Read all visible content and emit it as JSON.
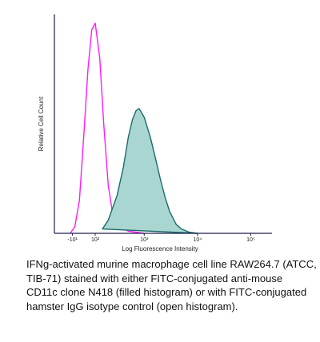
{
  "chart_data": {
    "type": "line",
    "xlabel": "Log Fluorescence Intensity",
    "ylabel": "Relative Cell Count",
    "xscale": "asinh",
    "asinh_width": 100,
    "xlim": [
      -100,
      250000
    ],
    "xticks": [
      {
        "value": -10,
        "label": "-10¹"
      },
      {
        "value": 100,
        "label": "10²"
      },
      {
        "value": 1000,
        "label": "10³"
      },
      {
        "value": 10000,
        "label": "10⁴"
      },
      {
        "value": 100000,
        "label": "10⁵"
      }
    ],
    "ylim": [
      0,
      100
    ],
    "series": [
      {
        "color": "#ff1aff",
        "x": [
          -20,
          0,
          20,
          40,
          60,
          80,
          100,
          130,
          160,
          200,
          250,
          300,
          400,
          500,
          700,
          1000
        ],
        "values": [
          0,
          3,
          15,
          45,
          75,
          93,
          96,
          80,
          50,
          22,
          8,
          4,
          2,
          1,
          0.5,
          0
        ]
      },
      {
        "color": "#1b6b6b",
        "fill": "#a9d6d1",
        "x": [
          150,
          200,
          300,
          400,
          500,
          600,
          700,
          800,
          1000,
          1300,
          1600,
          2000,
          2500,
          3000,
          4000,
          5000,
          7000,
          10000
        ],
        "values": [
          2,
          6,
          17,
          30,
          44,
          52,
          56,
          57,
          53,
          44,
          35,
          25,
          16,
          10,
          4,
          2,
          0.5,
          0
        ]
      }
    ]
  },
  "caption_lines": [
    "IFNg-activated murine macrophage cell line RAW264.7 (ATCC,",
    "TIB-71) stained with either FITC-conjugated anti-mouse",
    "CD11c clone N418 (filled histogram) or with FITC-conjugated",
    "hamster IgG isotype control (open histogram)."
  ]
}
